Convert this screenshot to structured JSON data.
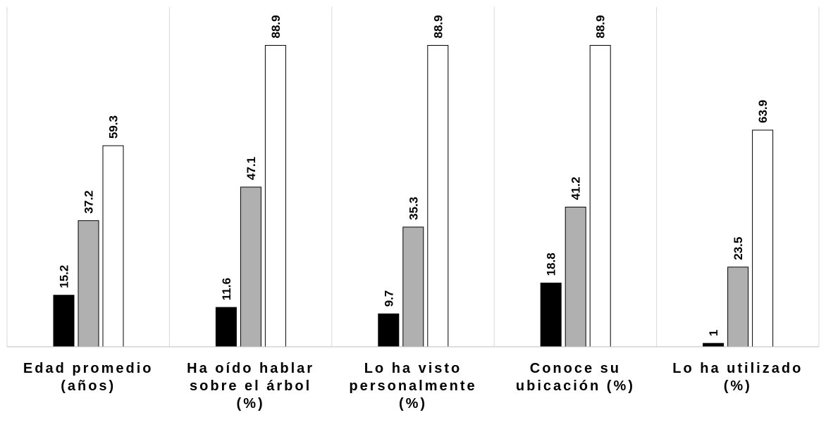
{
  "chart_data": {
    "type": "bar",
    "categories": [
      [
        "Edad promedio",
        "(años)"
      ],
      [
        "Ha oído hablar",
        "sobre el árbol",
        "(%)"
      ],
      [
        "Lo ha visto",
        "personalmente",
        "(%)"
      ],
      [
        "Conoce su",
        "ubicación (%)"
      ],
      [
        "Lo ha utilizado",
        "(%)"
      ]
    ],
    "series": [
      {
        "values": [
          15.2,
          11.6,
          9.7,
          18.8,
          1
        ],
        "color": "#000000"
      },
      {
        "values": [
          37.2,
          47.1,
          35.3,
          41.2,
          23.5
        ],
        "color": "#b0b0b0"
      },
      {
        "values": [
          59.3,
          88.9,
          88.9,
          88.9,
          63.9
        ],
        "color": "#ffffff"
      }
    ],
    "ylim": [
      0,
      100
    ],
    "legend": "none",
    "grid": "vertical-separators"
  }
}
